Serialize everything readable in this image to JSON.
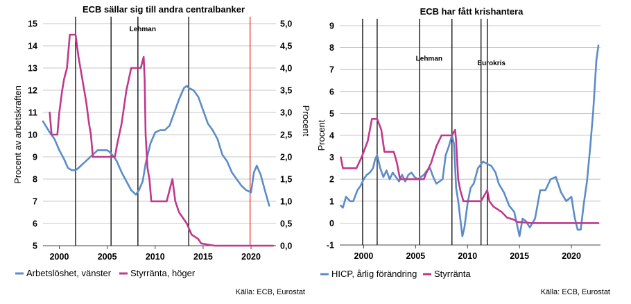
{
  "chart_data": [
    {
      "type": "line",
      "title": "ECB sällar sig till andra centralbanker",
      "ylabel": "Procent av arbetskraften",
      "ylabel_right": "Procent",
      "ylim": [
        5,
        15
      ],
      "ylim_right": [
        0,
        5
      ],
      "yticks": [
        "5",
        "6",
        "7",
        "8",
        "9",
        "10",
        "11",
        "12",
        "13",
        "14",
        "15"
      ],
      "yticks_right": [
        "0,0",
        "0,5",
        "1,0",
        "1,5",
        "2,0",
        "2,5",
        "3,0",
        "3,5",
        "4,0",
        "4,5",
        "5,0"
      ],
      "xlim": [
        1998.3,
        2022.6
      ],
      "xticks": [
        2000,
        2005,
        2010,
        2015,
        2020
      ],
      "grid": true,
      "legend": "bottom",
      "source": "Källa: ECB, Eurostat",
      "annotations": [
        {
          "text": "Lehman",
          "x": 2008.7,
          "y": 14.65
        }
      ],
      "vlines": [
        {
          "x": 2001.7,
          "color": "#000000"
        },
        {
          "x": 2005.4,
          "color": "#000000"
        },
        {
          "x": 2008.2,
          "color": "#000000"
        },
        {
          "x": 2013.5,
          "color": "#000000"
        },
        {
          "x": 2019.9,
          "color": "#e03030"
        }
      ],
      "series": [
        {
          "name": "Arbetslöshet, vänster",
          "axis": "left",
          "color": "#5b8cc8",
          "x": [
            1998.3,
            1999,
            1999.5,
            2000,
            2000.5,
            2000.9,
            2001.3,
            2001.7,
            2002,
            2002.5,
            2003,
            2003.5,
            2004,
            2004.5,
            2005,
            2005.3,
            2005.7,
            2006,
            2006.5,
            2007,
            2007.5,
            2008,
            2008.3,
            2008.7,
            2009,
            2009.5,
            2010,
            2010.5,
            2011,
            2011.5,
            2012,
            2012.5,
            2013,
            2013.3,
            2013.5,
            2014,
            2014.5,
            2015,
            2015.5,
            2016,
            2016.5,
            2017,
            2017.5,
            2018,
            2018.5,
            2019,
            2019.5,
            2020,
            2020.3,
            2020.6,
            2021,
            2021.5,
            2021.9
          ],
          "values": [
            10.6,
            10.1,
            9.8,
            9.3,
            8.9,
            8.5,
            8.4,
            8.4,
            8.5,
            8.7,
            8.9,
            9.1,
            9.3,
            9.3,
            9.3,
            9.2,
            9.0,
            8.8,
            8.3,
            7.9,
            7.5,
            7.3,
            7.5,
            7.9,
            8.7,
            9.6,
            10.1,
            10.2,
            10.2,
            10.4,
            11.0,
            11.6,
            12.1,
            12.2,
            12.1,
            12.0,
            11.7,
            11.1,
            10.5,
            10.2,
            9.8,
            9.1,
            8.8,
            8.3,
            8.0,
            7.7,
            7.5,
            7.4,
            8.3,
            8.6,
            8.2,
            7.4,
            6.8
          ]
        },
        {
          "name": "Styrränta, höger",
          "axis": "right",
          "color": "#c0388c",
          "x": [
            1999,
            1999.2,
            1999.3,
            1999.8,
            2000,
            2000.3,
            2000.5,
            2000.8,
            2001.1,
            2001.7,
            2002,
            2002.8,
            2003.1,
            2003.3,
            2003.5,
            2005.8,
            2006,
            2006.5,
            2007,
            2007.5,
            2008.5,
            2008.8,
            2008.9,
            2009,
            2009.2,
            2009.4,
            2009.6,
            2011.2,
            2011.5,
            2011.8,
            2012.1,
            2012.5,
            2013.3,
            2013.8,
            2014.5,
            2014.8,
            2016.2,
            2022.3
          ],
          "values": [
            3.0,
            2.5,
            2.5,
            2.5,
            3.0,
            3.5,
            3.75,
            4.0,
            4.75,
            4.75,
            4.25,
            3.25,
            2.75,
            2.5,
            2.0,
            2.0,
            2.25,
            2.75,
            3.5,
            4.0,
            4.0,
            4.25,
            3.75,
            2.5,
            1.75,
            1.5,
            1.0,
            1.0,
            1.25,
            1.5,
            1.0,
            0.75,
            0.5,
            0.25,
            0.15,
            0.05,
            0.0,
            0.0
          ]
        }
      ]
    },
    {
      "type": "line",
      "title": "ECB har fått krishantera",
      "ylabel": "Procent",
      "ylim": [
        -1,
        9
      ],
      "yticks": [
        "-1",
        "0",
        "1",
        "2",
        "3",
        "4",
        "5",
        "6",
        "7",
        "8",
        "9"
      ],
      "xlim": [
        1997.7,
        2022.8
      ],
      "xticks": [
        2000,
        2005,
        2010,
        2015,
        2020
      ],
      "grid": true,
      "legend": "bottom",
      "source": "Källa: ECB, Eurostat",
      "annotations": [
        {
          "text": "Lehman",
          "x": 2006.3,
          "y": 7.4
        },
        {
          "text": "Eurokris",
          "x": 2012.3,
          "y": 7.2
        }
      ],
      "vlines": [
        {
          "x": 1999.9,
          "color": "#000000"
        },
        {
          "x": 2001.3,
          "color": "#000000"
        },
        {
          "x": 2005.4,
          "color": "#000000"
        },
        {
          "x": 2008.5,
          "color": "#000000"
        },
        {
          "x": 2011.3,
          "color": "#000000"
        },
        {
          "x": 2011.9,
          "color": "#000000"
        }
      ],
      "series": [
        {
          "name": "HICP, årlig förändring",
          "axis": "left",
          "color": "#5b8cc8",
          "x": [
            1997.8,
            1998,
            1998.3,
            1998.7,
            1999,
            1999.4,
            1999.7,
            2000,
            2000.3,
            2000.6,
            2000.9,
            2001.1,
            2001.3,
            2001.6,
            2001.9,
            2002.2,
            2002.5,
            2002.8,
            2003.1,
            2003.4,
            2003.7,
            2004,
            2004.3,
            2004.6,
            2004.9,
            2005.2,
            2005.5,
            2005.8,
            2006.1,
            2006.4,
            2006.7,
            2007,
            2007.3,
            2007.6,
            2007.9,
            2008.2,
            2008.5,
            2008.7,
            2008.9,
            2009.1,
            2009.3,
            2009.5,
            2009.7,
            2010,
            2010.3,
            2010.6,
            2011,
            2011.5,
            2011.9,
            2012.3,
            2012.7,
            2013,
            2013.5,
            2014,
            2014.5,
            2015,
            2015.3,
            2015.6,
            2016,
            2016.5,
            2017,
            2017.5,
            2018,
            2018.5,
            2019,
            2019.5,
            2020,
            2020.3,
            2020.6,
            2020.9,
            2021.2,
            2021.5,
            2021.8,
            2022.1,
            2022.4,
            2022.6
          ],
          "values": [
            0.8,
            0.7,
            1.2,
            1.0,
            1.0,
            1.5,
            1.7,
            2.0,
            2.2,
            2.3,
            2.5,
            2.9,
            3.1,
            2.5,
            2.1,
            2.4,
            2.0,
            2.3,
            2.1,
            1.9,
            2.2,
            1.9,
            2.2,
            2.3,
            2.1,
            2.0,
            2.1,
            2.2,
            2.4,
            2.5,
            2.1,
            1.8,
            1.9,
            2.0,
            3.1,
            3.5,
            4.0,
            3.6,
            1.6,
            1.0,
            0.2,
            -0.6,
            -0.2,
            0.9,
            1.6,
            1.8,
            2.5,
            2.8,
            2.7,
            2.6,
            2.3,
            1.8,
            1.4,
            0.8,
            0.5,
            -0.6,
            0.2,
            0.1,
            -0.2,
            0.2,
            1.5,
            1.5,
            2.0,
            2.1,
            1.4,
            1.0,
            1.2,
            0.3,
            -0.3,
            -0.3,
            0.9,
            1.9,
            3.4,
            5.1,
            7.4,
            8.1
          ]
        },
        {
          "name": "Styrränta",
          "axis": "left",
          "color": "#c0388c",
          "x": [
            1997.8,
            1998,
            1999,
            1999.3,
            1999.8,
            2000,
            2000.4,
            2000.8,
            2001.3,
            2001.7,
            2002,
            2002.9,
            2003.2,
            2003.5,
            2005.8,
            2006,
            2006.5,
            2007,
            2007.5,
            2008.5,
            2008.8,
            2008.9,
            2009.1,
            2009.3,
            2009.6,
            2011.3,
            2011.6,
            2011.9,
            2012.1,
            2012.5,
            2013.3,
            2013.8,
            2014.5,
            2014.8,
            2016.2,
            2022.6
          ],
          "values": [
            3.0,
            2.5,
            2.5,
            2.5,
            3.0,
            3.25,
            3.75,
            4.75,
            4.75,
            4.25,
            3.25,
            3.25,
            2.75,
            2.0,
            2.0,
            2.25,
            2.75,
            3.5,
            4.0,
            4.0,
            4.25,
            3.75,
            2.0,
            1.5,
            1.0,
            1.0,
            1.25,
            1.5,
            1.0,
            0.75,
            0.5,
            0.25,
            0.15,
            0.05,
            0.0,
            0.0
          ]
        }
      ]
    }
  ]
}
